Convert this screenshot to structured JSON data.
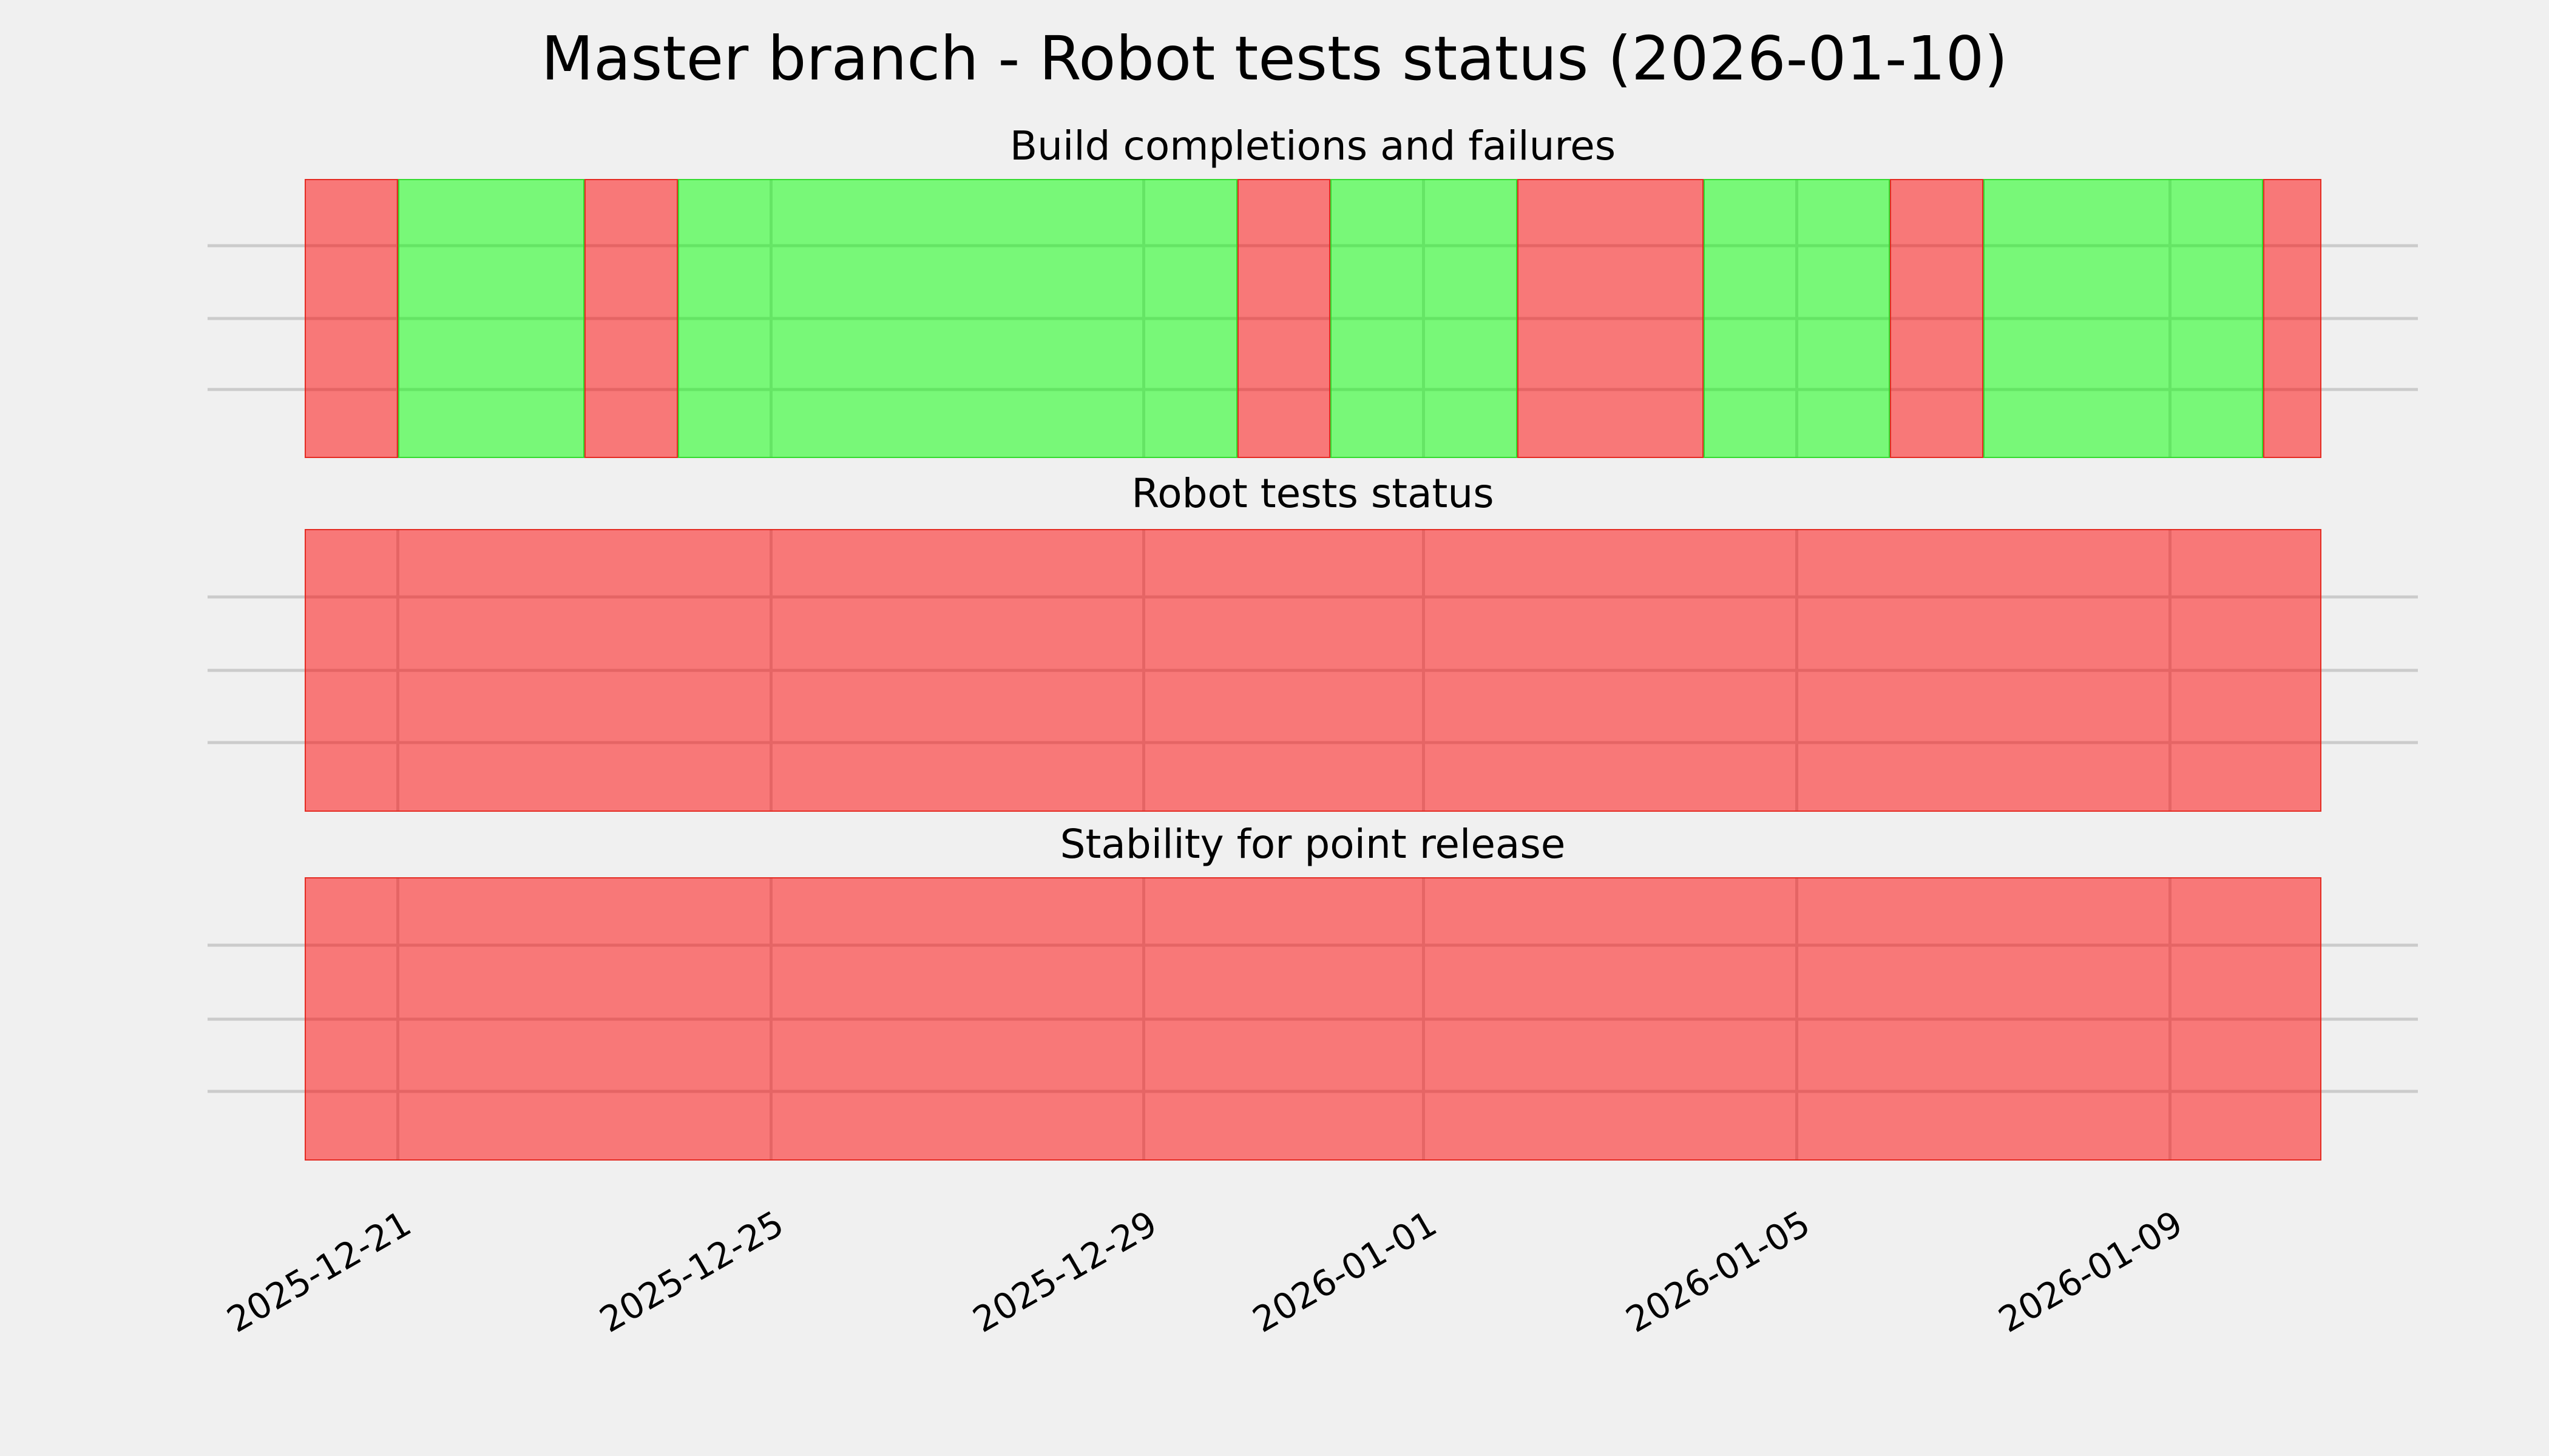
{
  "title": "Master branch - Robot tests status (2026-01-10)",
  "total_days": 21.625,
  "x_axis": {
    "tick_labels": [
      "2025-12-21",
      "2025-12-25",
      "2025-12-29",
      "2026-01-01",
      "2026-01-05",
      "2026-01-09"
    ],
    "tick_day_offsets": [
      1,
      5,
      9,
      12,
      16,
      20
    ]
  },
  "charts": [
    {
      "subtitle": "Build completions and failures",
      "segments": [
        {
          "status": "fail",
          "days": 1
        },
        {
          "status": "pass",
          "days": 2
        },
        {
          "status": "fail",
          "days": 1
        },
        {
          "status": "pass",
          "days": 6
        },
        {
          "status": "fail",
          "days": 1
        },
        {
          "status": "pass",
          "days": 2
        },
        {
          "status": "fail",
          "days": 2
        },
        {
          "status": "pass",
          "days": 2
        },
        {
          "status": "fail",
          "days": 1
        },
        {
          "status": "pass",
          "days": 3
        },
        {
          "status": "fail",
          "days": 0.625
        }
      ]
    },
    {
      "subtitle": "Robot tests status",
      "segments": [
        {
          "status": "fail",
          "days": 21.625
        }
      ]
    },
    {
      "subtitle": "Stability for point release",
      "segments": [
        {
          "status": "fail",
          "days": 21.625
        }
      ]
    }
  ],
  "colors": {
    "background": "#f0f0f0",
    "gridline": "#cbcbcb",
    "fail_fill": "rgba(255,0,0,0.5)",
    "fail_edge": "rgba(225,35,25,0.9)",
    "pass_fill": "rgba(0,255,0,0.5)",
    "pass_edge": "rgba(45,215,40,0.9)",
    "text": "#000000"
  },
  "chart_data": [
    {
      "type": "bar",
      "title": "Build completions and failures",
      "x_start": "2025-12-20",
      "x_end": "2026-01-10T15:00",
      "xticks": [
        "2025-12-21",
        "2025-12-25",
        "2025-12-29",
        "2026-01-01",
        "2026-01-05",
        "2026-01-09"
      ],
      "grid": true,
      "legend": false,
      "series": [
        {
          "from": "2025-12-20",
          "to": "2025-12-21",
          "status": "failure",
          "color": "red"
        },
        {
          "from": "2025-12-21",
          "to": "2025-12-23",
          "status": "success",
          "color": "green"
        },
        {
          "from": "2025-12-23",
          "to": "2025-12-24",
          "status": "failure",
          "color": "red"
        },
        {
          "from": "2025-12-24",
          "to": "2025-12-30",
          "status": "success",
          "color": "green"
        },
        {
          "from": "2025-12-30",
          "to": "2025-12-31",
          "status": "failure",
          "color": "red"
        },
        {
          "from": "2025-12-31",
          "to": "2026-01-02",
          "status": "success",
          "color": "green"
        },
        {
          "from": "2026-01-02",
          "to": "2026-01-04",
          "status": "failure",
          "color": "red"
        },
        {
          "from": "2026-01-04",
          "to": "2026-01-06",
          "status": "success",
          "color": "green"
        },
        {
          "from": "2026-01-06",
          "to": "2026-01-07",
          "status": "failure",
          "color": "red"
        },
        {
          "from": "2026-01-07",
          "to": "2026-01-10",
          "status": "success",
          "color": "green"
        },
        {
          "from": "2026-01-10",
          "to": "2026-01-10T15:00",
          "status": "failure",
          "color": "red"
        }
      ]
    },
    {
      "type": "bar",
      "title": "Robot tests status",
      "x_start": "2025-12-20",
      "x_end": "2026-01-10T15:00",
      "xticks": [
        "2025-12-21",
        "2025-12-25",
        "2025-12-29",
        "2026-01-01",
        "2026-01-05",
        "2026-01-09"
      ],
      "grid": true,
      "legend": false,
      "series": [
        {
          "from": "2025-12-20",
          "to": "2026-01-10T15:00",
          "status": "failure",
          "color": "red"
        }
      ]
    },
    {
      "type": "bar",
      "title": "Stability for point release",
      "x_start": "2025-12-20",
      "x_end": "2026-01-10T15:00",
      "xticks": [
        "2025-12-21",
        "2025-12-25",
        "2025-12-29",
        "2026-01-01",
        "2026-01-05",
        "2026-01-09"
      ],
      "grid": true,
      "legend": false,
      "series": [
        {
          "from": "2025-12-20",
          "to": "2026-01-10T15:00",
          "status": "failure",
          "color": "red"
        }
      ]
    }
  ]
}
